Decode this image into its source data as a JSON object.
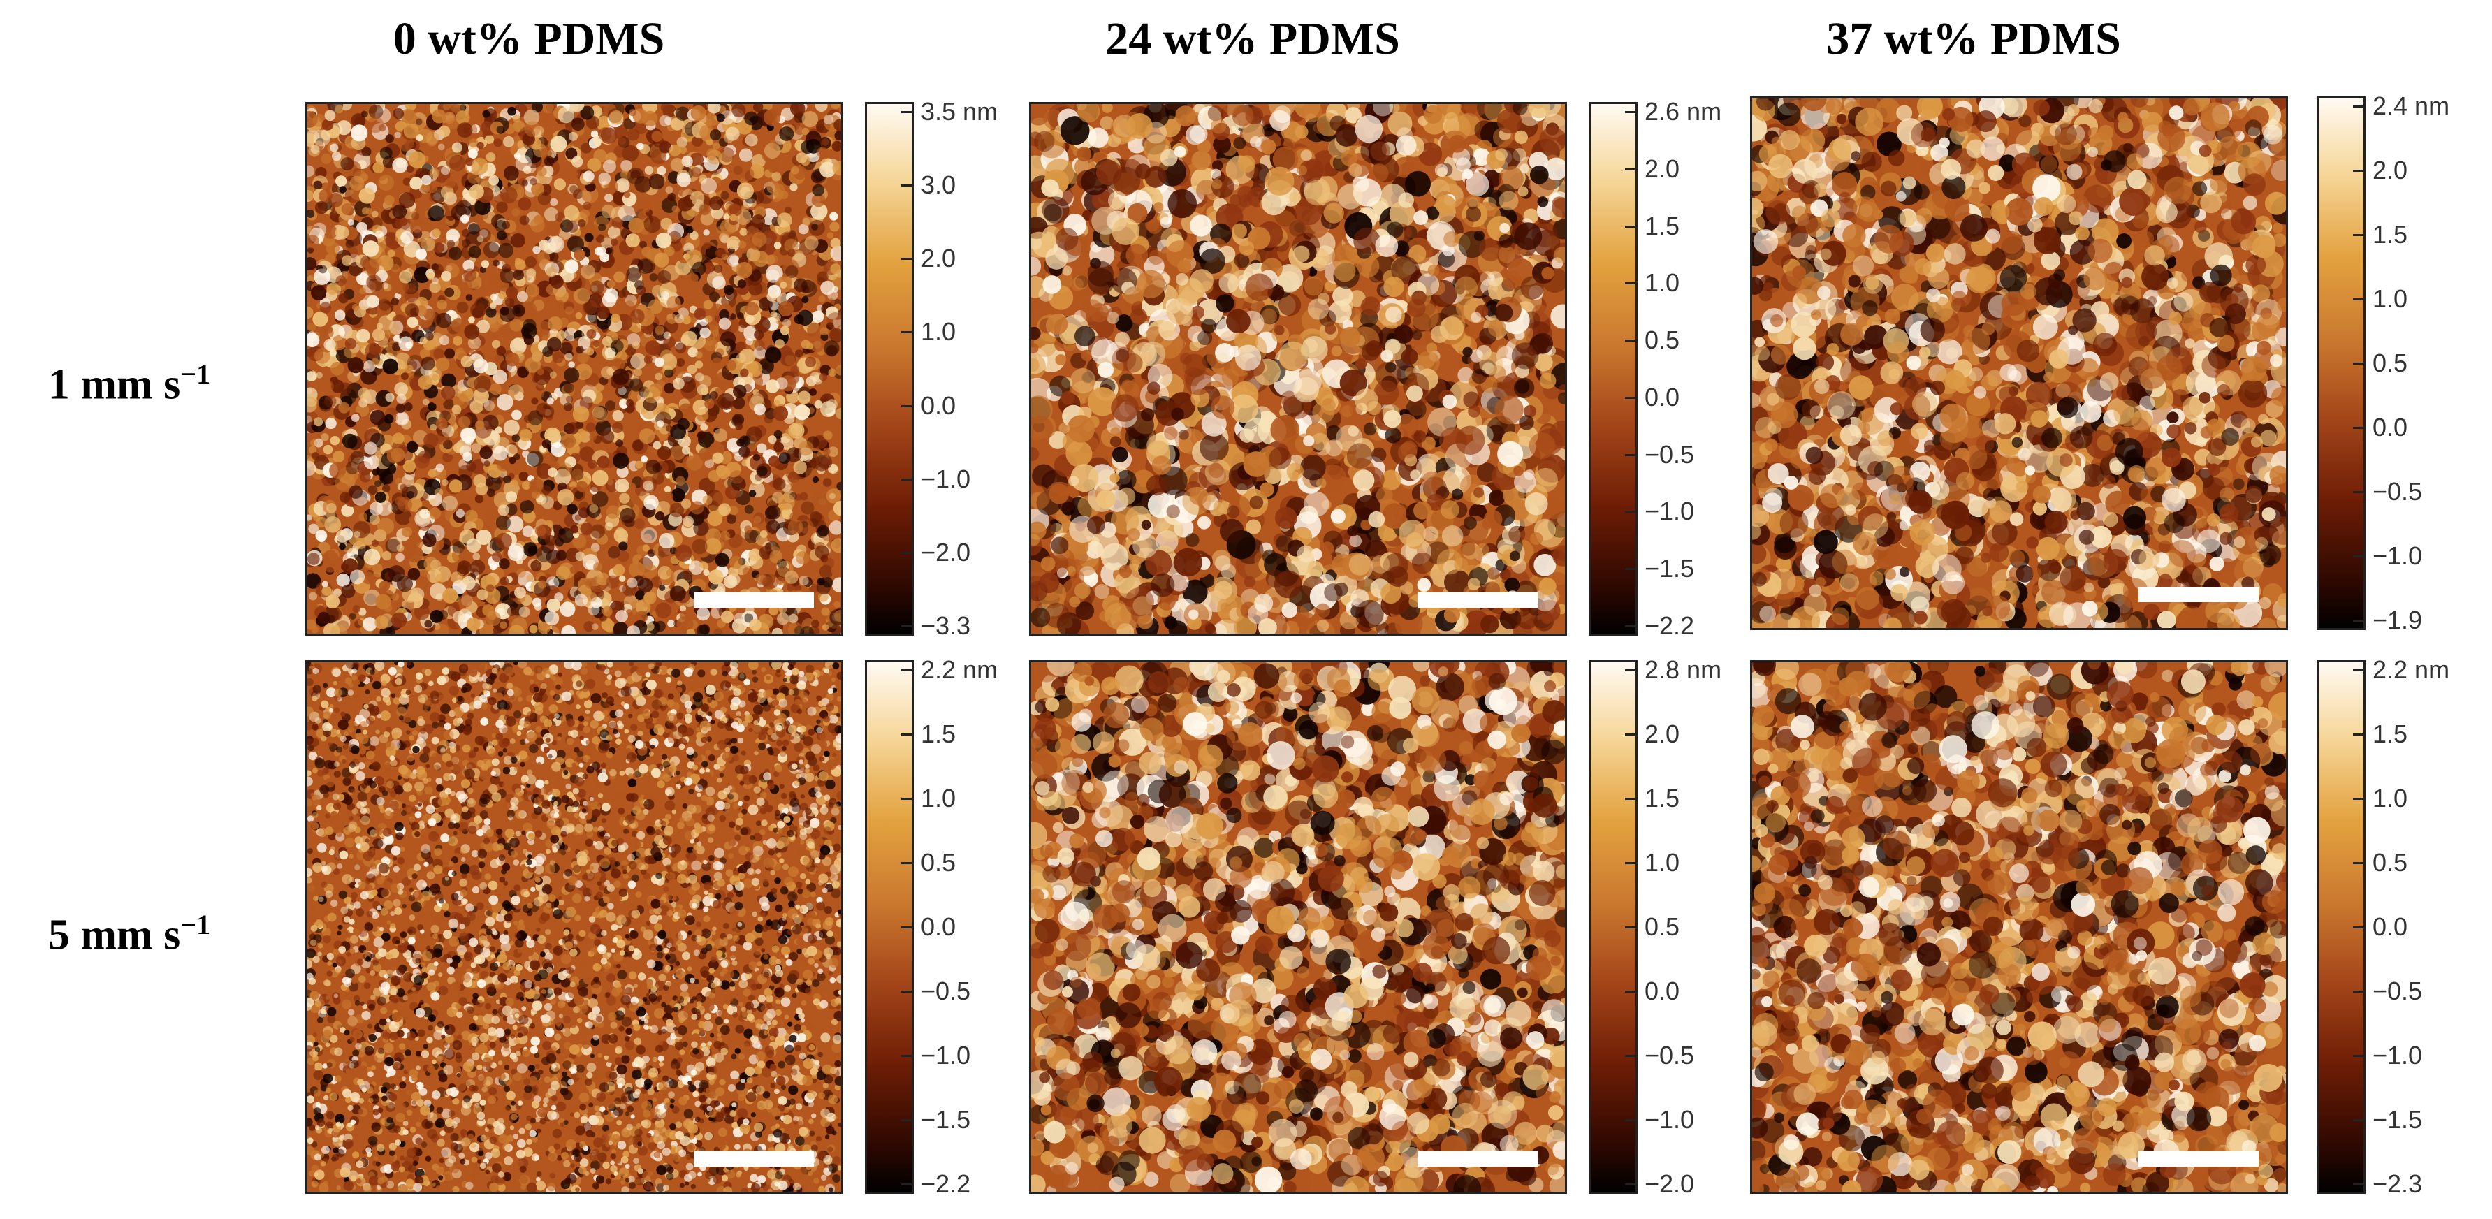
{
  "column_titles": [
    "0 wt% PDMS",
    "24 wt% PDMS",
    "37 wt% PDMS"
  ],
  "row_titles": [
    {
      "main": "1 mm s",
      "sup": "−1"
    },
    {
      "main": "5 mm s",
      "sup": "−1"
    }
  ],
  "colorscale": "afm-hot",
  "panels": [
    {
      "id": "r1c1",
      "texture": "medium",
      "colorbar": [
        "3.5 nm",
        "3.0",
        "2.0",
        "1.0",
        "0.0",
        "−1.0",
        "−2.0",
        "−3.3"
      ]
    },
    {
      "id": "r1c2",
      "texture": "coarse",
      "colorbar": [
        "2.6 nm",
        "2.0",
        "1.5",
        "1.0",
        "0.5",
        "0.0",
        "−0.5",
        "−1.0",
        "−1.5",
        "−2.2"
      ]
    },
    {
      "id": "r1c3",
      "texture": "coarse",
      "colorbar": [
        "2.4 nm",
        "2.0",
        "1.5",
        "1.0",
        "0.5",
        "0.0",
        "−0.5",
        "−1.0",
        "−1.9"
      ]
    },
    {
      "id": "r2c1",
      "texture": "fine",
      "colorbar": [
        "2.2 nm",
        "1.5",
        "1.0",
        "0.5",
        "0.0",
        "−0.5",
        "−1.0",
        "−1.5",
        "−2.2"
      ]
    },
    {
      "id": "r2c2",
      "texture": "coarse",
      "colorbar": [
        "2.8 nm",
        "2.0",
        "1.5",
        "1.0",
        "0.5",
        "0.0",
        "−0.5",
        "−1.0",
        "−2.0"
      ]
    },
    {
      "id": "r2c3",
      "texture": "coarse",
      "colorbar": [
        "2.2 nm",
        "1.5",
        "1.0",
        "0.5",
        "0.0",
        "−0.5",
        "−1.0",
        "−1.5",
        "−2.3"
      ]
    }
  ]
}
